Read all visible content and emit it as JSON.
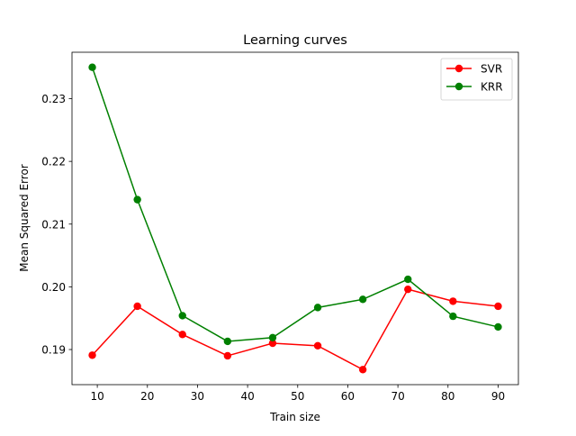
{
  "chart_data": {
    "type": "line",
    "title": "Learning curves",
    "xlabel": "Train size",
    "ylabel": "Mean Squared Error",
    "xlim": [
      4.95,
      94.05
    ],
    "ylim": [
      0.1844,
      0.2374
    ],
    "xticks": [
      10,
      20,
      30,
      40,
      50,
      60,
      70,
      80,
      90
    ],
    "yticks": [
      0.19,
      0.2,
      0.21,
      0.22,
      0.23
    ],
    "ytick_labels": [
      "0.19",
      "0.20",
      "0.21",
      "0.22",
      "0.23"
    ],
    "grid": false,
    "legend_position": "top-right",
    "x": [
      9,
      18,
      27,
      36,
      45,
      54,
      63,
      72,
      81,
      90
    ],
    "series": [
      {
        "name": "SVR",
        "color": "#ff0000",
        "values": [
          0.1891,
          0.1969,
          0.1924,
          0.189,
          0.191,
          0.1906,
          0.1868,
          0.1996,
          0.1977,
          0.1969
        ]
      },
      {
        "name": "KRR",
        "color": "#008000",
        "values": [
          0.235,
          0.2139,
          0.1954,
          0.1913,
          0.1919,
          0.1967,
          0.198,
          0.2012,
          0.1953,
          0.1936
        ]
      }
    ]
  }
}
